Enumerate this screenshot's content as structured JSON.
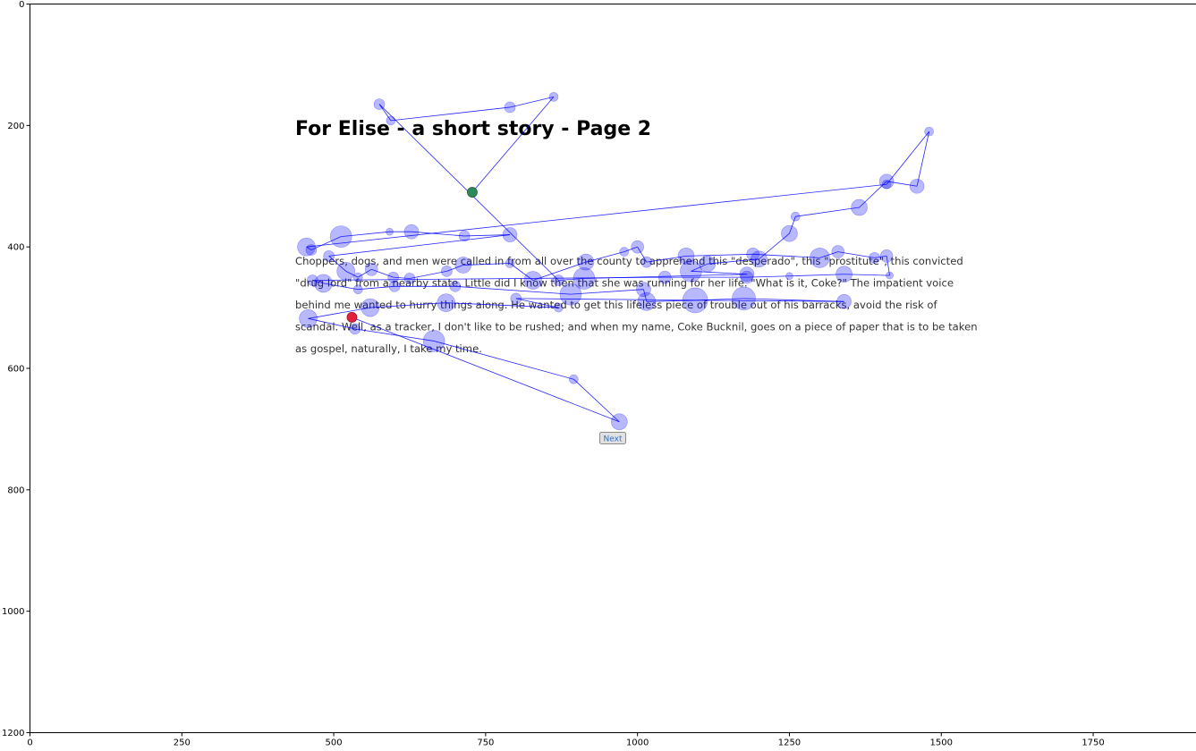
{
  "plot": {
    "x_ticks": [
      "0",
      "250",
      "500",
      "750",
      "1000",
      "1250",
      "1500",
      "1750"
    ],
    "y_ticks": [
      "0",
      "200",
      "400",
      "600",
      "800",
      "1000",
      "1200"
    ],
    "xlim": [
      0,
      1920
    ],
    "ylim": [
      1200,
      0
    ],
    "colors": {
      "fixation_fill": "#0000ff",
      "fixation_opacity": 0.28,
      "scanpath": "#0000ff",
      "start_marker": "#2e8b57",
      "end_marker": "#e0223a"
    }
  },
  "page": {
    "title": "For Elise - a short story - Page 2",
    "paragraph_lines": [
      "Choppers, dogs, and men were called in from all over the county to apprehend this \"desperado\", this \"prostitute\", this convicted",
      "\"drug lord\" from a nearby state. Little did I know then that she was running for her life. \"What is it, Coke?\" The impatient voice",
      "behind me wanted to hurry things along. He wanted to get this lifeless piece of trouble out of his barracks, avoid the risk of",
      "scandal. Well, as a tracker, I don't like to be rushed; and when my name, Coke Bucknil, goes on a piece of paper that is to be taken",
      "as gospel, naturally, I take my time."
    ],
    "next_button_label": "Next"
  },
  "chart_data": {
    "type": "scatter",
    "title": "",
    "xlabel": "",
    "ylabel": "",
    "xlim": [
      0,
      1920
    ],
    "ylim": [
      1200,
      0
    ],
    "grid": false,
    "note_series": "eye-tracking fixations joined by a scanpath, drawn in order",
    "fixations": [
      {
        "x": 728,
        "y": 310,
        "r": 5
      },
      {
        "x": 862,
        "y": 153,
        "r": 5
      },
      {
        "x": 790,
        "y": 170,
        "r": 6
      },
      {
        "x": 594,
        "y": 192,
        "r": 5
      },
      {
        "x": 575,
        "y": 165,
        "r": 6
      },
      {
        "x": 870,
        "y": 455,
        "r": 6
      },
      {
        "x": 912,
        "y": 452,
        "r": 12
      },
      {
        "x": 1180,
        "y": 445,
        "r": 8
      },
      {
        "x": 1088,
        "y": 440,
        "r": 12
      },
      {
        "x": 1115,
        "y": 428,
        "r": 9
      },
      {
        "x": 1200,
        "y": 420,
        "r": 9
      },
      {
        "x": 1250,
        "y": 378,
        "r": 9
      },
      {
        "x": 1260,
        "y": 350,
        "r": 5
      },
      {
        "x": 1365,
        "y": 335,
        "r": 9
      },
      {
        "x": 1410,
        "y": 292,
        "r": 8
      },
      {
        "x": 1460,
        "y": 300,
        "r": 8
      },
      {
        "x": 1480,
        "y": 210,
        "r": 5
      },
      {
        "x": 1410,
        "y": 297,
        "r": 5
      },
      {
        "x": 455,
        "y": 400,
        "r": 10
      },
      {
        "x": 463,
        "y": 405,
        "r": 6
      },
      {
        "x": 512,
        "y": 383,
        "r": 12
      },
      {
        "x": 592,
        "y": 375,
        "r": 4
      },
      {
        "x": 628,
        "y": 375,
        "r": 8
      },
      {
        "x": 715,
        "y": 382,
        "r": 6
      },
      {
        "x": 790,
        "y": 380,
        "r": 8
      },
      {
        "x": 492,
        "y": 415,
        "r": 6
      },
      {
        "x": 520,
        "y": 440,
        "r": 10
      },
      {
        "x": 540,
        "y": 450,
        "r": 5
      },
      {
        "x": 562,
        "y": 437,
        "r": 7
      },
      {
        "x": 598,
        "y": 450,
        "r": 6
      },
      {
        "x": 625,
        "y": 452,
        "r": 6
      },
      {
        "x": 686,
        "y": 440,
        "r": 6
      },
      {
        "x": 713,
        "y": 430,
        "r": 9
      },
      {
        "x": 790,
        "y": 427,
        "r": 5
      },
      {
        "x": 828,
        "y": 455,
        "r": 10
      },
      {
        "x": 915,
        "y": 425,
        "r": 9
      },
      {
        "x": 978,
        "y": 408,
        "r": 5
      },
      {
        "x": 1000,
        "y": 400,
        "r": 7
      },
      {
        "x": 1015,
        "y": 425,
        "r": 6
      },
      {
        "x": 1080,
        "y": 415,
        "r": 9
      },
      {
        "x": 1190,
        "y": 412,
        "r": 7
      },
      {
        "x": 1300,
        "y": 418,
        "r": 11
      },
      {
        "x": 1330,
        "y": 408,
        "r": 7
      },
      {
        "x": 1390,
        "y": 418,
        "r": 6
      },
      {
        "x": 1410,
        "y": 415,
        "r": 7
      },
      {
        "x": 1415,
        "y": 447,
        "r": 4
      },
      {
        "x": 1340,
        "y": 445,
        "r": 9
      },
      {
        "x": 1250,
        "y": 448,
        "r": 4
      },
      {
        "x": 1180,
        "y": 450,
        "r": 7
      },
      {
        "x": 1045,
        "y": 450,
        "r": 7
      },
      {
        "x": 465,
        "y": 455,
        "r": 6
      },
      {
        "x": 483,
        "y": 460,
        "r": 10
      },
      {
        "x": 540,
        "y": 470,
        "r": 5
      },
      {
        "x": 600,
        "y": 465,
        "r": 6
      },
      {
        "x": 700,
        "y": 465,
        "r": 6
      },
      {
        "x": 890,
        "y": 478,
        "r": 12
      },
      {
        "x": 1010,
        "y": 470,
        "r": 8
      },
      {
        "x": 1015,
        "y": 490,
        "r": 10
      },
      {
        "x": 1095,
        "y": 488,
        "r": 14
      },
      {
        "x": 1175,
        "y": 485,
        "r": 13
      },
      {
        "x": 1340,
        "y": 490,
        "r": 8
      },
      {
        "x": 800,
        "y": 485,
        "r": 6
      },
      {
        "x": 870,
        "y": 500,
        "r": 5
      },
      {
        "x": 685,
        "y": 492,
        "r": 10
      },
      {
        "x": 560,
        "y": 500,
        "r": 10
      },
      {
        "x": 458,
        "y": 518,
        "r": 10
      },
      {
        "x": 535,
        "y": 535,
        "r": 6
      },
      {
        "x": 665,
        "y": 555,
        "r": 12
      },
      {
        "x": 895,
        "y": 618,
        "r": 5
      },
      {
        "x": 970,
        "y": 688,
        "r": 9
      },
      {
        "x": 530,
        "y": 516,
        "r": 5
      }
    ]
  }
}
